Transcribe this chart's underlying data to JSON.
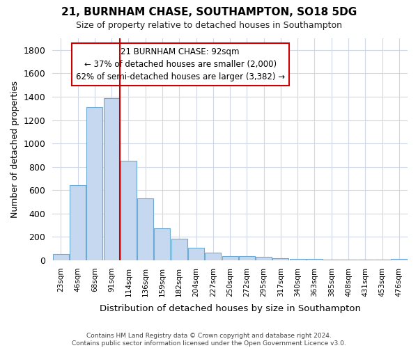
{
  "title": "21, BURNHAM CHASE, SOUTHAMPTON, SO18 5DG",
  "subtitle": "Size of property relative to detached houses in Southampton",
  "xlabel": "Distribution of detached houses by size in Southampton",
  "ylabel": "Number of detached properties",
  "bar_color": "#c5d8f0",
  "bar_edgecolor": "#6aaad4",
  "categories": [
    "23sqm",
    "46sqm",
    "68sqm",
    "91sqm",
    "114sqm",
    "136sqm",
    "159sqm",
    "182sqm",
    "204sqm",
    "227sqm",
    "250sqm",
    "272sqm",
    "295sqm",
    "317sqm",
    "340sqm",
    "363sqm",
    "385sqm",
    "408sqm",
    "431sqm",
    "453sqm",
    "476sqm"
  ],
  "values": [
    55,
    645,
    1310,
    1385,
    850,
    530,
    275,
    185,
    105,
    68,
    38,
    38,
    28,
    18,
    15,
    10,
    8,
    5,
    5,
    5,
    12
  ],
  "ylim": [
    0,
    1900
  ],
  "yticks": [
    0,
    200,
    400,
    600,
    800,
    1000,
    1200,
    1400,
    1600,
    1800
  ],
  "red_line_bin_index": 3,
  "annotation_title": "21 BURNHAM CHASE: 92sqm",
  "annotation_line1": "← 37% of detached houses are smaller (2,000)",
  "annotation_line2": "62% of semi-detached houses are larger (3,382) →",
  "annotation_box_edgecolor": "#cc0000",
  "footnote1": "Contains HM Land Registry data © Crown copyright and database right 2024.",
  "footnote2": "Contains public sector information licensed under the Open Government Licence v3.0.",
  "fig_bg_color": "#ffffff",
  "axes_bg_color": "#ffffff",
  "grid_color": "#d0d8e8"
}
